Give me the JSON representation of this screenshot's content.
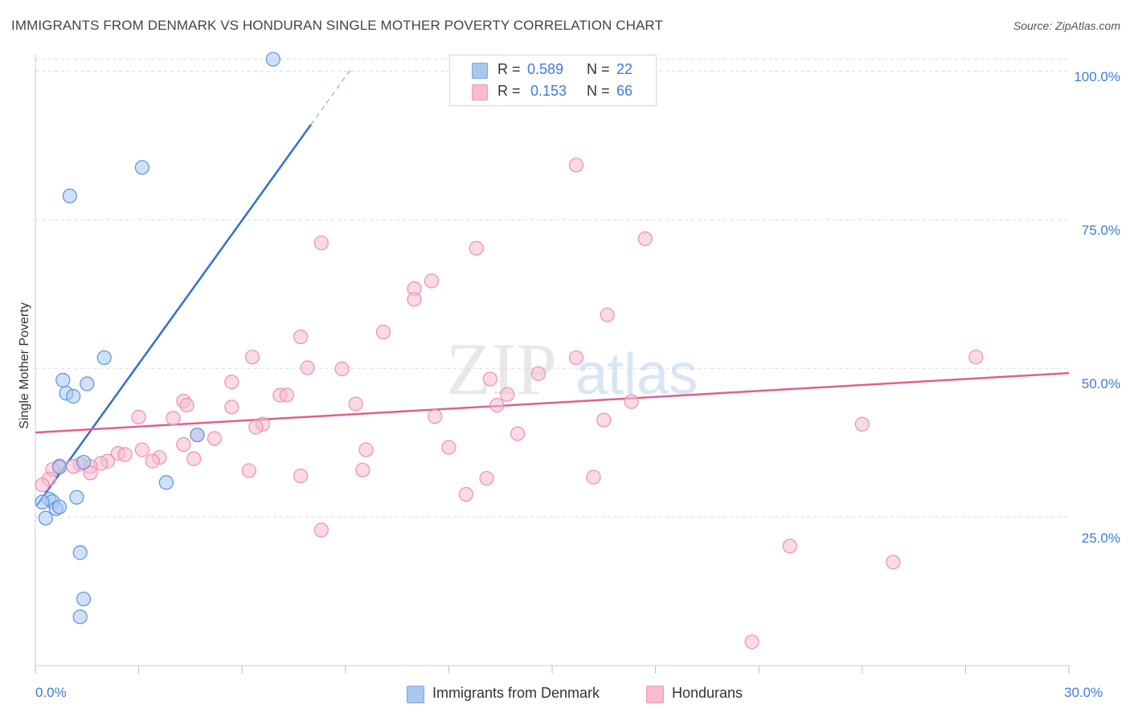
{
  "title": "IMMIGRANTS FROM DENMARK VS HONDURAN SINGLE MOTHER POVERTY CORRELATION CHART",
  "source": "Source: ZipAtlas.com",
  "watermark": {
    "zip": "ZIP",
    "atlas": "atlas"
  },
  "stats": [
    {
      "r_label": "R =",
      "r_value": "0.589",
      "n_label": "N =",
      "n_value": "22",
      "color": "#a9c8f0"
    },
    {
      "r_label": "R =",
      "r_value": "0.153",
      "n_label": "N =",
      "n_value": "66",
      "color": "#f7bcd0"
    }
  ],
  "legend": [
    {
      "label": "Immigrants from Denmark",
      "color": "#a9c8f0"
    },
    {
      "label": "Hondurans",
      "color": "#f7bcd0"
    }
  ],
  "chart_data": {
    "type": "scatter",
    "title": "IMMIGRANTS FROM DENMARK VS HONDURAN SINGLE MOTHER POVERTY CORRELATION CHART",
    "xlabel": "",
    "ylabel": "Single Mother Poverty",
    "xlim": [
      0,
      30
    ],
    "ylim": [
      0,
      102.5
    ],
    "x_tick_labels": [
      "0.0%",
      "30.0%"
    ],
    "y_ticks": [
      25,
      50,
      75,
      100
    ],
    "y_tick_labels": [
      "25.0%",
      "50.0%",
      "75.0%",
      "100.0%"
    ],
    "grid": true,
    "legend_position": "bottom",
    "series": [
      {
        "name": "Immigrants from Denmark",
        "color": "#5b93de",
        "fill": "#a9c8f0",
        "trend_color": "#2f6fd1",
        "trend": {
          "x0": 0.05,
          "y0": 27.0,
          "x1": 8.0,
          "y1": 91.0,
          "dash_x1": 9.2
        },
        "points": [
          [
            6.9,
            102.0
          ],
          [
            3.1,
            83.8
          ],
          [
            1.0,
            79.0
          ],
          [
            2.0,
            51.8
          ],
          [
            0.8,
            48.0
          ],
          [
            1.5,
            47.4
          ],
          [
            0.9,
            45.8
          ],
          [
            1.1,
            45.3
          ],
          [
            4.7,
            38.8
          ],
          [
            1.4,
            34.2
          ],
          [
            0.7,
            33.4
          ],
          [
            3.8,
            30.8
          ],
          [
            0.4,
            28.0
          ],
          [
            0.5,
            27.6
          ],
          [
            1.2,
            28.3
          ],
          [
            0.6,
            26.4
          ],
          [
            0.7,
            26.7
          ],
          [
            0.3,
            24.8
          ],
          [
            1.3,
            19.0
          ],
          [
            1.4,
            11.2
          ],
          [
            1.3,
            8.2
          ],
          [
            0.2,
            27.5
          ]
        ]
      },
      {
        "name": "Hondurans",
        "color": "#ee8fae",
        "fill": "#f7bcd0",
        "trend_color": "#e0608c",
        "trend": {
          "x0": 0.0,
          "y0": 39.2,
          "x1": 30.0,
          "y1": 49.2
        },
        "points": [
          [
            15.7,
            84.2
          ],
          [
            8.3,
            71.1
          ],
          [
            12.8,
            70.2
          ],
          [
            17.7,
            71.8
          ],
          [
            11.5,
            64.7
          ],
          [
            11.0,
            63.4
          ],
          [
            11.0,
            61.6
          ],
          [
            16.6,
            59.0
          ],
          [
            10.1,
            56.1
          ],
          [
            7.7,
            55.3
          ],
          [
            6.3,
            51.9
          ],
          [
            15.7,
            51.8
          ],
          [
            27.3,
            51.9
          ],
          [
            7.9,
            50.1
          ],
          [
            8.9,
            49.9
          ],
          [
            14.6,
            49.1
          ],
          [
            13.2,
            48.2
          ],
          [
            5.7,
            47.7
          ],
          [
            7.1,
            45.5
          ],
          [
            7.3,
            45.5
          ],
          [
            4.3,
            44.5
          ],
          [
            13.7,
            45.6
          ],
          [
            9.3,
            44.0
          ],
          [
            17.3,
            44.4
          ],
          [
            4.4,
            43.8
          ],
          [
            5.7,
            43.5
          ],
          [
            13.4,
            43.8
          ],
          [
            3.0,
            41.8
          ],
          [
            11.6,
            41.9
          ],
          [
            4.0,
            41.6
          ],
          [
            6.6,
            40.6
          ],
          [
            16.5,
            41.3
          ],
          [
            6.4,
            40.1
          ],
          [
            24.0,
            40.6
          ],
          [
            4.7,
            38.8
          ],
          [
            14.0,
            39.0
          ],
          [
            5.2,
            38.2
          ],
          [
            4.3,
            37.2
          ],
          [
            12.0,
            36.7
          ],
          [
            3.1,
            36.3
          ],
          [
            9.6,
            36.3
          ],
          [
            2.4,
            35.7
          ],
          [
            2.6,
            35.5
          ],
          [
            3.6,
            35.0
          ],
          [
            3.4,
            34.4
          ],
          [
            2.1,
            34.4
          ],
          [
            4.6,
            34.8
          ],
          [
            1.9,
            34.0
          ],
          [
            1.3,
            33.9
          ],
          [
            1.6,
            33.5
          ],
          [
            0.7,
            33.6
          ],
          [
            1.1,
            33.5
          ],
          [
            0.5,
            33.0
          ],
          [
            6.2,
            32.8
          ],
          [
            9.5,
            32.9
          ],
          [
            1.6,
            32.4
          ],
          [
            7.7,
            31.9
          ],
          [
            13.1,
            31.5
          ],
          [
            16.2,
            31.7
          ],
          [
            0.4,
            31.4
          ],
          [
            12.5,
            28.8
          ],
          [
            8.3,
            22.8
          ],
          [
            21.9,
            20.1
          ],
          [
            24.9,
            17.4
          ],
          [
            0.2,
            30.4
          ],
          [
            20.8,
            4.0
          ]
        ]
      }
    ]
  }
}
